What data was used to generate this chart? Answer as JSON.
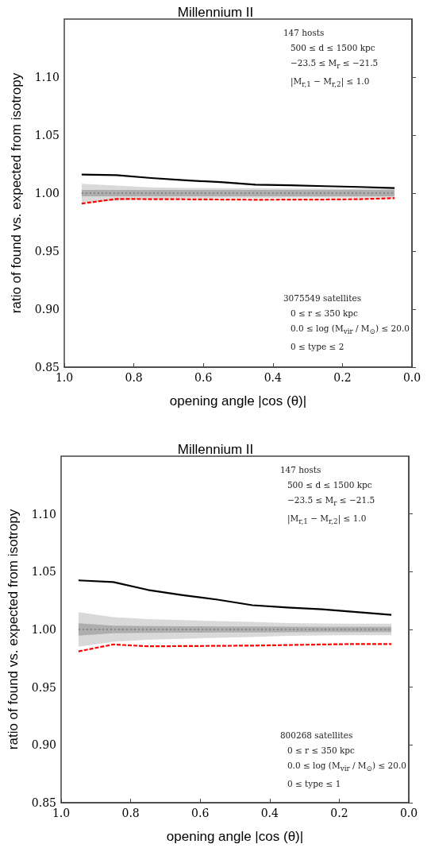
{
  "chart_data": [
    {
      "type": "line",
      "title": "Millennium II",
      "xlabel": "opening angle |cos (θ)|",
      "ylabel": "ratio of found vs. expected from isotropy",
      "x": [
        0.95,
        0.85,
        0.75,
        0.65,
        0.55,
        0.45,
        0.35,
        0.25,
        0.15,
        0.05
      ],
      "series": [
        {
          "color": "#d9d9d9",
          "values": [
            null,
            null,
            null,
            null,
            null,
            null,
            null,
            null,
            null,
            null
          ],
          "lower": [
            0.992,
            0.9935,
            0.995,
            0.9955,
            0.9957,
            0.9957,
            0.996,
            0.996,
            0.996,
            0.996
          ],
          "upper": [
            1.008,
            1.0065,
            1.005,
            1.0045,
            1.0043,
            1.0043,
            1.004,
            1.004,
            1.004,
            1.004
          ]
        },
        {
          "color": "#7a7a7a",
          "line_style": "dotted",
          "values": [
            1,
            1,
            1,
            1,
            1,
            1,
            1,
            1,
            1,
            1
          ],
          "lower": [
            0.9972,
            0.9972,
            0.9972,
            0.9972,
            0.9972,
            0.9972,
            0.9972,
            0.9972,
            0.9972,
            0.9972
          ],
          "upper": [
            1.0028,
            1.0028,
            1.0028,
            1.0028,
            1.0028,
            1.0028,
            1.0028,
            1.0028,
            1.0028,
            1.0028
          ]
        },
        {
          "color": "#000000",
          "line_style": "solid",
          "values": [
            1.016,
            1.0155,
            1.013,
            1.011,
            1.0095,
            1.0073,
            1.0068,
            1.006,
            1.0053,
            1.0043
          ]
        },
        {
          "color": "#ff0000",
          "line_style": "dashed",
          "values": [
            0.991,
            0.995,
            0.9948,
            0.9947,
            0.9945,
            0.9943,
            0.9944,
            0.9945,
            0.9948,
            0.9957
          ]
        }
      ],
      "xlim": [
        1.0,
        0.0
      ],
      "xticks": [
        {
          "value": 1,
          "label": "1.0"
        },
        {
          "value": 0.8,
          "label": "0.8"
        },
        {
          "value": 0.6,
          "label": "0.6"
        },
        {
          "value": 0.4,
          "label": "0.4"
        },
        {
          "value": 0.2,
          "label": "0.2"
        },
        {
          "value": 0,
          "label": "0.0"
        }
      ],
      "ylim": [
        0.85,
        1.15
      ],
      "yticks": [
        0.85,
        {
          "value": 0.9,
          "label": "0.90"
        },
        0.95,
        {
          "value": 1,
          "label": "1.00"
        },
        1.05,
        {
          "value": 1.1,
          "label": "1.10"
        }
      ],
      "grid": false,
      "marker": "none",
      "annotations": [
        "147 hosts",
        "500 ≤ d ≤ 1500 kpc",
        "−23.5 ≤ M$_{r}$ ≤ −21.5",
        "|M$_{r,1}$ − M$_{r,2}$| ≤ 1.0",
        "3075549 satellites",
        "0 ≤ r ≤ 350 kpc",
        "0.0 ≤ log (M$_{vir}$ / M$_{⊙}$) ≤ 20.0",
        "0 ≤ type ≤ 2"
      ]
    },
    {
      "type": "line",
      "title": "Millennium II",
      "xlabel": "opening angle |cos (θ)|",
      "ylabel": "ratio of found vs. expected from isotropy",
      "x": [
        0.95,
        0.85,
        0.75,
        0.65,
        0.55,
        0.45,
        0.35,
        0.25,
        0.15,
        0.05
      ],
      "series": [
        {
          "color": "#d9d9d9",
          "values": [
            null,
            null,
            null,
            null,
            null,
            null,
            null,
            null,
            null,
            null
          ],
          "lower": [
            0.985,
            0.9894,
            0.991,
            0.992,
            0.9927,
            0.9934,
            0.9945,
            0.9948,
            0.995,
            0.995
          ],
          "upper": [
            1.015,
            1.0106,
            1.009,
            1.008,
            1.0073,
            1.0066,
            1.0055,
            1.0052,
            1.005,
            1.005
          ]
        },
        {
          "color": "#7a7a7a",
          "line_style": "dotted",
          "values": [
            1,
            1,
            1,
            1,
            1,
            1,
            1,
            1,
            1,
            1
          ],
          "lower": [
            0.9946,
            0.9967,
            0.997,
            0.9972,
            0.9974,
            0.9975,
            0.9976,
            0.9977,
            0.9978,
            0.9978
          ],
          "upper": [
            1.0054,
            1.0033,
            1.003,
            1.0028,
            1.0026,
            1.0025,
            1.0024,
            1.0023,
            1.0022,
            1.0022
          ]
        },
        {
          "color": "#000000",
          "line_style": "solid",
          "values": [
            1.0425,
            1.041,
            1.0342,
            1.0297,
            1.0258,
            1.021,
            1.019,
            1.0174,
            1.015,
            1.0126
          ]
        },
        {
          "color": "#ff0000",
          "line_style": "dashed",
          "values": [
            0.981,
            0.987,
            0.9854,
            0.9856,
            0.9858,
            0.986,
            0.9865,
            0.987,
            0.9874,
            0.9874
          ]
        }
      ],
      "xlim": [
        1.0,
        0.0
      ],
      "xticks": [
        {
          "value": 1,
          "label": "1.0"
        },
        {
          "value": 0.8,
          "label": "0.8"
        },
        {
          "value": 0.6,
          "label": "0.6"
        },
        {
          "value": 0.4,
          "label": "0.4"
        },
        {
          "value": 0.2,
          "label": "0.2"
        },
        {
          "value": 0,
          "label": "0.0"
        }
      ],
      "ylim": [
        0.85,
        1.15
      ],
      "yticks": [
        0.85,
        {
          "value": 0.9,
          "label": "0.90"
        },
        0.95,
        {
          "value": 1,
          "label": "1.00"
        },
        1.05,
        {
          "value": 1.1,
          "label": "1.10"
        }
      ],
      "grid": false,
      "marker": "none",
      "annotations": [
        "147 hosts",
        "500 ≤ d ≤ 1500 kpc",
        "−23.5 ≤ M$_{r}$ ≤ −21.5",
        "|M$_{r,1}$ − M$_{r,2}$| ≤ 1.0",
        "800268 satellites",
        "0 ≤ r ≤ 350 kpc",
        "0.0 ≤ log (M$_{vir}$ / M$_{⊙}$) ≤ 20.0",
        "0 ≤ type ≤ 1"
      ]
    }
  ]
}
